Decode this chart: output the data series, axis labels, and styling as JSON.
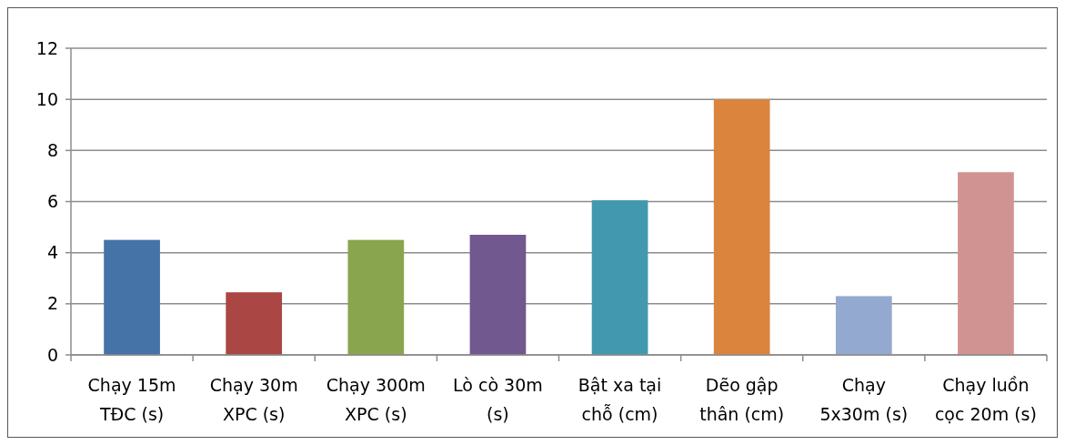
{
  "chart_data": {
    "type": "bar",
    "categories": [
      "Chạy 15m\nTĐC (s)",
      "Chạy 30m\nXPC (s)",
      "Chạy 300m\nXPC (s)",
      "Lò cò 30m\n(s)",
      "Bật xa tại\nchỗ (cm)",
      "Dẽo gập\nthân (cm)",
      "Chạy\n5x30m (s)",
      "Chạy luồn\ncọc 20m (s)"
    ],
    "values": [
      4.5,
      2.45,
      4.5,
      4.7,
      6.05,
      10,
      2.3,
      7.15
    ],
    "colors": [
      "#4572a7",
      "#aa4643",
      "#89a54e",
      "#71588f",
      "#4198af",
      "#db843d",
      "#93a9cf",
      "#d19392"
    ],
    "ylim": [
      0,
      12
    ],
    "yticks": [
      0,
      2,
      4,
      6,
      8,
      10,
      12
    ],
    "grid": "y"
  }
}
